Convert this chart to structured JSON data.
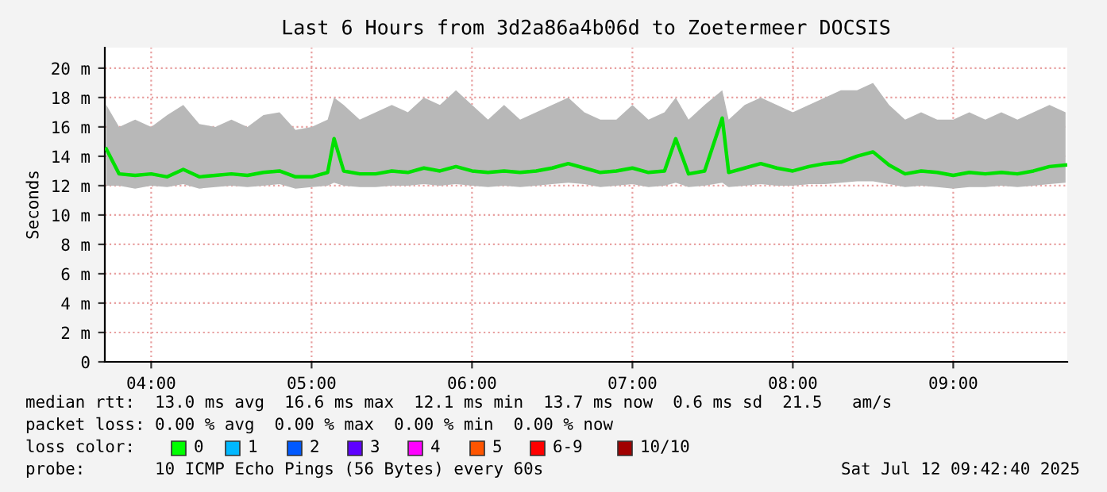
{
  "chart_data": {
    "type": "line",
    "title": "Last 6 Hours from 3d2a86a4b06d to Zoetermeer DOCSIS",
    "ylabel": "Seconds",
    "x": [
      3.72,
      3.8,
      3.9,
      4.0,
      4.1,
      4.2,
      4.3,
      4.4,
      4.5,
      4.6,
      4.7,
      4.8,
      4.9,
      5.0,
      5.1,
      5.14,
      5.2,
      5.3,
      5.4,
      5.5,
      5.6,
      5.7,
      5.8,
      5.9,
      6.0,
      6.1,
      6.2,
      6.3,
      6.4,
      6.5,
      6.6,
      6.7,
      6.8,
      6.9,
      7.0,
      7.1,
      7.2,
      7.27,
      7.35,
      7.45,
      7.56,
      7.6,
      7.7,
      7.8,
      7.9,
      8.0,
      8.1,
      8.2,
      8.3,
      8.4,
      8.5,
      8.6,
      8.7,
      8.8,
      8.9,
      9.0,
      9.1,
      9.2,
      9.3,
      9.4,
      9.5,
      9.6,
      9.7
    ],
    "series": [
      {
        "color": "#00e000",
        "values": [
          14.5,
          12.8,
          12.7,
          12.8,
          12.6,
          13.1,
          12.6,
          12.7,
          12.8,
          12.7,
          12.9,
          13.0,
          12.6,
          12.6,
          12.9,
          15.2,
          13.0,
          12.8,
          12.8,
          13.0,
          12.9,
          13.2,
          13.0,
          13.3,
          13.0,
          12.9,
          13.0,
          12.9,
          13.0,
          13.2,
          13.5,
          13.2,
          12.9,
          13.0,
          13.2,
          12.9,
          13.0,
          15.2,
          12.8,
          13.0,
          16.6,
          12.9,
          13.2,
          13.5,
          13.2,
          13.0,
          13.3,
          13.5,
          13.6,
          14.0,
          14.3,
          13.4,
          12.8,
          13.0,
          12.9,
          12.7,
          12.9,
          12.8,
          12.9,
          12.8,
          13.0,
          13.3,
          13.4
        ],
        "lower": [
          12.0,
          12.0,
          11.8,
          12.0,
          11.9,
          12.1,
          11.8,
          11.9,
          12.0,
          11.9,
          12.0,
          12.1,
          11.8,
          11.9,
          12.0,
          12.2,
          12.0,
          11.9,
          11.9,
          12.0,
          12.0,
          12.1,
          12.0,
          12.1,
          12.0,
          11.9,
          12.0,
          11.9,
          12.0,
          12.1,
          12.2,
          12.1,
          11.9,
          12.0,
          12.1,
          11.9,
          12.0,
          12.2,
          11.9,
          12.0,
          12.2,
          11.9,
          12.0,
          12.1,
          12.0,
          12.0,
          12.1,
          12.1,
          12.2,
          12.3,
          12.3,
          12.1,
          11.9,
          12.0,
          11.9,
          11.8,
          11.9,
          11.9,
          12.0,
          11.9,
          12.0,
          12.1,
          12.2
        ],
        "upper": [
          17.5,
          16.0,
          16.5,
          16.0,
          16.8,
          17.5,
          16.2,
          16.0,
          16.5,
          16.0,
          16.8,
          17.0,
          15.8,
          16.0,
          16.5,
          18.0,
          17.5,
          16.5,
          17.0,
          17.5,
          17.0,
          18.0,
          17.5,
          18.5,
          17.5,
          16.5,
          17.5,
          16.5,
          17.0,
          17.5,
          18.0,
          17.0,
          16.5,
          16.5,
          17.5,
          16.5,
          17.0,
          18.0,
          16.5,
          17.5,
          18.5,
          16.5,
          17.5,
          18.0,
          17.5,
          17.0,
          17.5,
          18.0,
          18.5,
          18.5,
          19.0,
          17.5,
          16.5,
          17.0,
          16.5,
          16.5,
          17.0,
          16.5,
          17.0,
          16.5,
          17.0,
          17.5,
          17.0
        ]
      }
    ],
    "xlim": [
      3.711,
      9.711
    ],
    "xticks": [
      {
        "value": 4,
        "label": "04:00"
      },
      {
        "value": 5,
        "label": "05:00"
      },
      {
        "value": 6,
        "label": "06:00"
      },
      {
        "value": 7,
        "label": "07:00"
      },
      {
        "value": 8,
        "label": "08:00"
      },
      {
        "value": 9,
        "label": "09:00"
      }
    ],
    "ylim": [
      0,
      21.4
    ],
    "yticks": [
      0,
      {
        "value": 2,
        "label": "2 m"
      },
      {
        "value": 4,
        "label": "4 m"
      },
      {
        "value": 6,
        "label": "6 m"
      },
      {
        "value": 8,
        "label": "8 m"
      },
      {
        "value": 10,
        "label": "10 m"
      },
      {
        "value": 12,
        "label": "12 m"
      },
      {
        "value": 14,
        "label": "14 m"
      },
      {
        "value": 16,
        "label": "16 m"
      },
      {
        "value": 18,
        "label": "18 m"
      },
      {
        "value": 20,
        "label": "20 m"
      }
    ],
    "grid": true,
    "annotations": [
      "median rtt:  13.0 ms avg  16.6 ms max  12.1 ms min  13.7 ms now  0.6 ms sd  21.5   am/s",
      "packet loss: 0.00 % avg  0.00 % max  0.00 % min  0.00 % now",
      "loss color:",
      "0",
      "1",
      "2",
      "3",
      "4",
      "5",
      "6-9",
      "10/10",
      "probe:       10 ICMP Echo Pings (56 Bytes) every 60s",
      "Sat Jul 12 09:42:40 2025"
    ]
  }
}
